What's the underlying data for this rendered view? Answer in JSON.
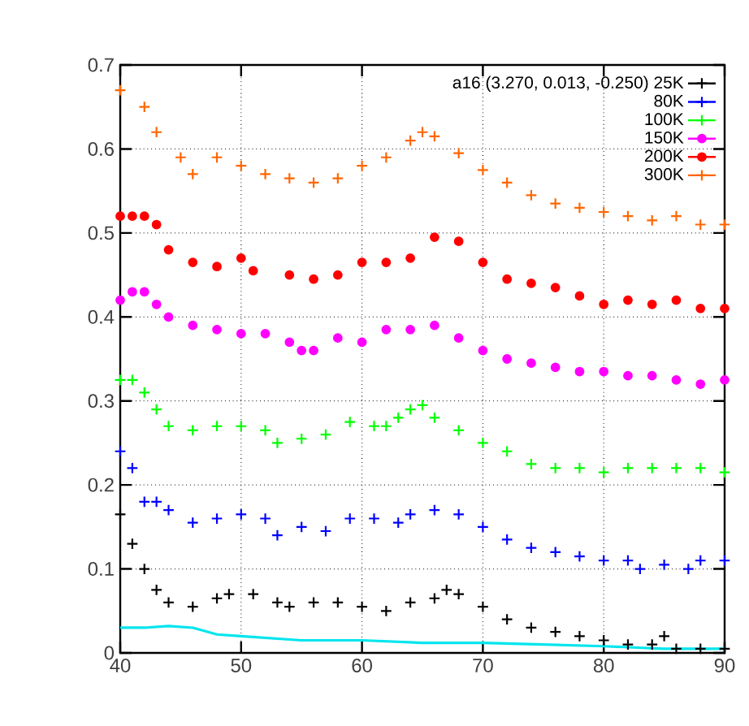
{
  "chart_data": {
    "type": "scatter",
    "xlim": [
      40,
      90
    ],
    "ylim": [
      0,
      0.7
    ],
    "xticks": [
      40,
      50,
      60,
      70,
      80,
      90
    ],
    "yticks": [
      0,
      0.1,
      0.2,
      0.3,
      0.4,
      0.5,
      0.6,
      0.7
    ],
    "grid": true,
    "legend": "top right",
    "series": [
      {
        "name": "a16 (3.270, 0.013, -0.250) 25K",
        "color": "#000000",
        "marker": "cross",
        "x": [
          40,
          41,
          42,
          43,
          44,
          46,
          48,
          49,
          51,
          53,
          54,
          56,
          58,
          60,
          62,
          64,
          66,
          67,
          68,
          70,
          72,
          74,
          76,
          78,
          80,
          82,
          84,
          85,
          86,
          88,
          90
        ],
        "values": [
          0.165,
          0.13,
          0.1,
          0.075,
          0.06,
          0.055,
          0.065,
          0.07,
          0.07,
          0.06,
          0.055,
          0.06,
          0.06,
          0.055,
          0.05,
          0.06,
          0.065,
          0.075,
          0.07,
          0.055,
          0.04,
          0.03,
          0.025,
          0.02,
          0.015,
          0.01,
          0.01,
          0.02,
          0.005,
          0.005,
          0.005
        ]
      },
      {
        "name": "80K",
        "color": "#0000ff",
        "marker": "cross",
        "x": [
          40,
          41,
          42,
          43,
          44,
          46,
          48,
          50,
          52,
          53,
          55,
          57,
          59,
          61,
          63,
          64,
          66,
          68,
          70,
          72,
          74,
          76,
          78,
          80,
          82,
          83,
          85,
          87,
          88,
          90
        ],
        "values": [
          0.24,
          0.22,
          0.18,
          0.18,
          0.17,
          0.155,
          0.16,
          0.165,
          0.16,
          0.14,
          0.15,
          0.145,
          0.16,
          0.16,
          0.155,
          0.165,
          0.17,
          0.165,
          0.15,
          0.135,
          0.125,
          0.12,
          0.115,
          0.11,
          0.11,
          0.1,
          0.105,
          0.1,
          0.11,
          0.11
        ]
      },
      {
        "name": "100K",
        "color": "#00ff00",
        "marker": "cross",
        "x": [
          40,
          41,
          42,
          43,
          44,
          46,
          48,
          50,
          52,
          53,
          55,
          57,
          59,
          61,
          62,
          63,
          64,
          65,
          66,
          68,
          70,
          72,
          74,
          76,
          78,
          80,
          82,
          84,
          86,
          88,
          90
        ],
        "values": [
          0.325,
          0.325,
          0.31,
          0.29,
          0.27,
          0.265,
          0.27,
          0.27,
          0.265,
          0.25,
          0.255,
          0.26,
          0.275,
          0.27,
          0.27,
          0.28,
          0.29,
          0.295,
          0.28,
          0.265,
          0.25,
          0.24,
          0.225,
          0.22,
          0.22,
          0.215,
          0.22,
          0.22,
          0.22,
          0.22,
          0.215
        ]
      },
      {
        "name": "150K",
        "color": "#ff00ff",
        "marker": "circle",
        "x": [
          40,
          41,
          42,
          43,
          44,
          46,
          48,
          50,
          52,
          54,
          55,
          56,
          58,
          60,
          62,
          64,
          66,
          68,
          70,
          72,
          74,
          76,
          78,
          80,
          82,
          84,
          86,
          88,
          90
        ],
        "values": [
          0.42,
          0.43,
          0.43,
          0.415,
          0.4,
          0.39,
          0.385,
          0.38,
          0.38,
          0.37,
          0.36,
          0.36,
          0.375,
          0.37,
          0.385,
          0.385,
          0.39,
          0.375,
          0.36,
          0.35,
          0.345,
          0.34,
          0.335,
          0.335,
          0.33,
          0.33,
          0.325,
          0.32,
          0.325
        ]
      },
      {
        "name": "200K",
        "color": "#ff0000",
        "marker": "circle",
        "x": [
          40,
          41,
          42,
          43,
          44,
          46,
          48,
          50,
          51,
          54,
          56,
          58,
          60,
          62,
          64,
          66,
          68,
          70,
          72,
          74,
          76,
          78,
          80,
          82,
          84,
          86,
          88,
          90
        ],
        "values": [
          0.52,
          0.52,
          0.52,
          0.51,
          0.48,
          0.465,
          0.46,
          0.47,
          0.455,
          0.45,
          0.445,
          0.45,
          0.465,
          0.465,
          0.47,
          0.495,
          0.49,
          0.465,
          0.445,
          0.44,
          0.435,
          0.425,
          0.415,
          0.42,
          0.415,
          0.42,
          0.41,
          0.41
        ]
      },
      {
        "name": "300K",
        "color": "#ff6600",
        "marker": "cross",
        "x": [
          40,
          42,
          43,
          45,
          46,
          48,
          50,
          52,
          54,
          56,
          58,
          60,
          62,
          64,
          65,
          66,
          68,
          70,
          72,
          74,
          76,
          78,
          80,
          82,
          84,
          86,
          88,
          90
        ],
        "values": [
          0.67,
          0.65,
          0.62,
          0.59,
          0.57,
          0.59,
          0.58,
          0.57,
          0.565,
          0.56,
          0.565,
          0.58,
          0.59,
          0.61,
          0.62,
          0.615,
          0.595,
          0.575,
          0.56,
          0.545,
          0.535,
          0.53,
          0.525,
          0.52,
          0.515,
          0.52,
          0.51,
          0.51
        ]
      },
      {
        "type": "line",
        "color": "#00e5ee",
        "marker": "none",
        "x": [
          40,
          42,
          44,
          46,
          48,
          50,
          55,
          60,
          65,
          70,
          75,
          80,
          85,
          90
        ],
        "values": [
          0.03,
          0.03,
          0.032,
          0.03,
          0.022,
          0.02,
          0.015,
          0.015,
          0.012,
          0.012,
          0.01,
          0.008,
          0.005,
          0.005
        ]
      }
    ]
  }
}
